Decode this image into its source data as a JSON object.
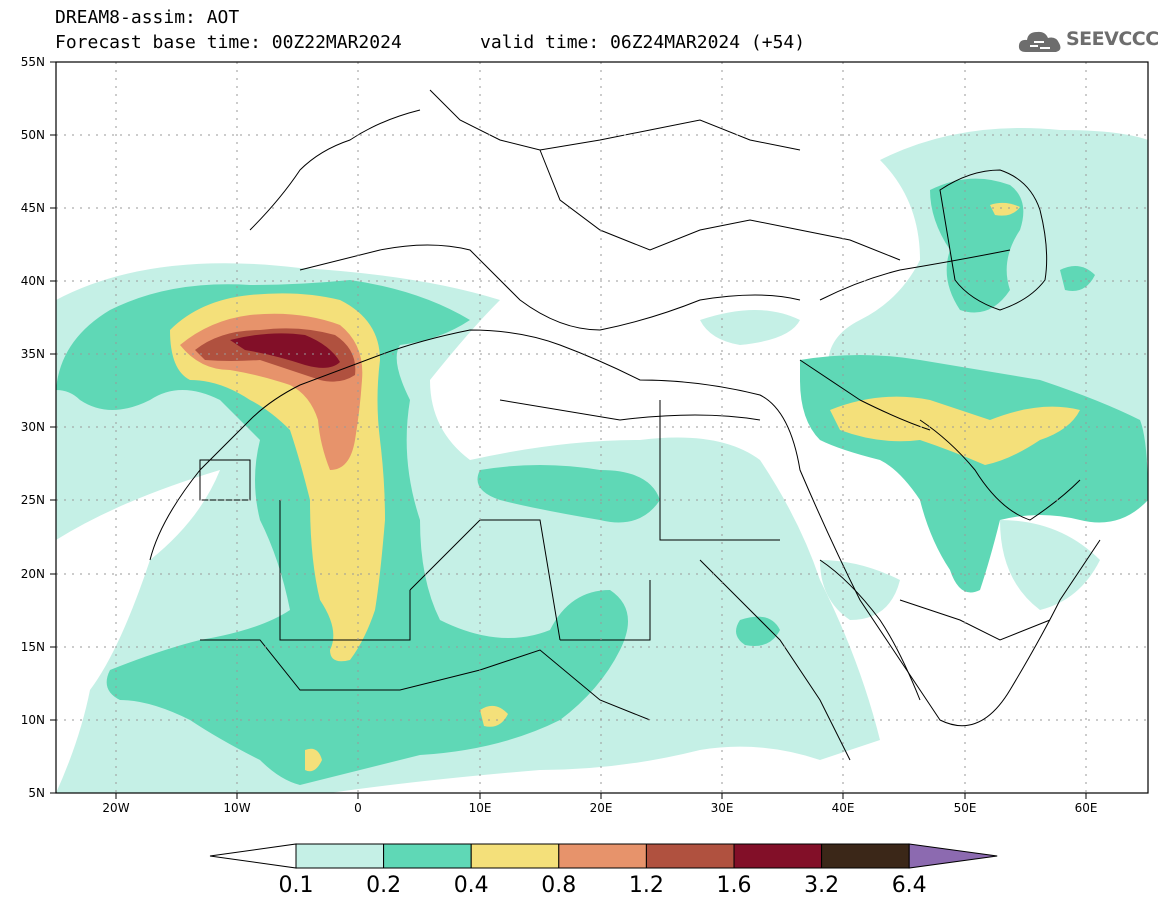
{
  "header": {
    "line1": "DREAM8-assim: AOT",
    "base_time": "Forecast base time: 00Z22MAR2024",
    "valid_time": "valid time: 06Z24MAR2024 (+54)"
  },
  "logo": {
    "text": "SEEVCCC",
    "icon": "cloud-icon"
  },
  "map": {
    "lat_labels": [
      "55N",
      "50N",
      "45N",
      "40N",
      "35N",
      "30N",
      "25N",
      "20N",
      "15N",
      "10N",
      "5N"
    ],
    "lon_labels": [
      "20W",
      "10W",
      "0",
      "10E",
      "20E",
      "30E",
      "40E",
      "50E",
      "60E"
    ],
    "lat_range": [
      5,
      55
    ],
    "lon_range": [
      -25,
      65
    ],
    "grid": "dotted"
  },
  "legend": {
    "values": [
      "0.1",
      "0.2",
      "0.4",
      "0.8",
      "1.2",
      "1.6",
      "3.2",
      "6.4"
    ],
    "colors": [
      "#ffffff",
      "#c5f0e6",
      "#5fd8b6",
      "#f4e07a",
      "#e7936b",
      "#b0513f",
      "#820f28",
      "#3b2718",
      "#8c6ab0"
    ]
  }
}
